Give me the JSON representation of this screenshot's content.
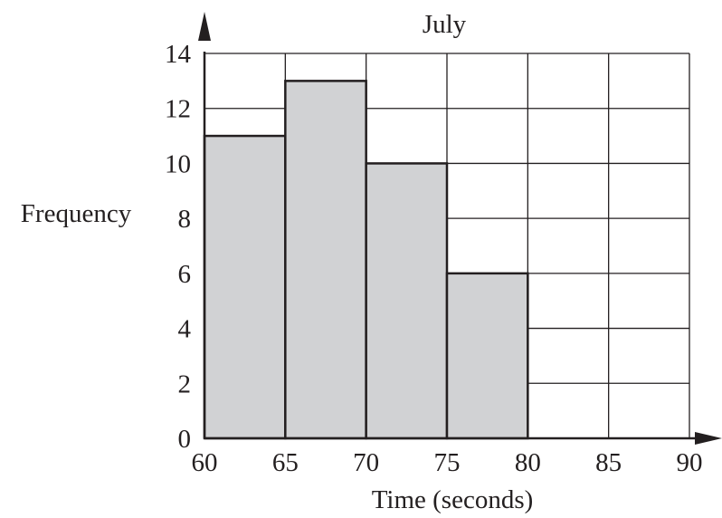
{
  "chart_data": {
    "type": "bar",
    "title": "July",
    "xlabel": "Time (seconds)",
    "ylabel": "Frequency",
    "bins": [
      {
        "start": 60,
        "end": 65,
        "value": 11
      },
      {
        "start": 65,
        "end": 70,
        "value": 13
      },
      {
        "start": 70,
        "end": 75,
        "value": 10
      },
      {
        "start": 75,
        "end": 80,
        "value": 6
      }
    ],
    "xlim": [
      60,
      90
    ],
    "ylim": [
      0,
      14
    ],
    "xticks": [
      60,
      65,
      70,
      75,
      80,
      85,
      90
    ],
    "yticks": [
      0,
      2,
      4,
      6,
      8,
      10,
      12,
      14
    ],
    "grid": true,
    "colors": {
      "bar_fill": "#d1d2d4",
      "line": "#231f20"
    }
  }
}
